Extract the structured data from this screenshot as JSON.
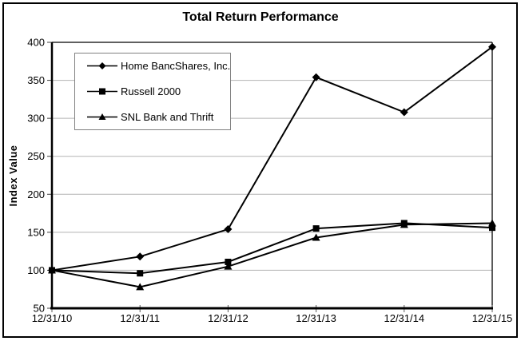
{
  "colors": {
    "series": "#000000",
    "grid": "#b3b3b3",
    "axis": "#000000",
    "legend_border": "#808080",
    "background": "#ffffff"
  },
  "chart_data": {
    "type": "line",
    "title": "Total Return Performance",
    "xlabel": "",
    "ylabel": "Index Value",
    "categories": [
      "12/31/10",
      "12/31/11",
      "12/31/12",
      "12/31/13",
      "12/31/14",
      "12/31/15"
    ],
    "ylim": [
      50,
      400
    ],
    "yticks": [
      50,
      100,
      150,
      200,
      250,
      300,
      350,
      400
    ],
    "grid": "horizontal-gray",
    "legend_position": "upper-left-inside",
    "series": [
      {
        "name": "Home BancShares, Inc.",
        "marker": "diamond",
        "color": "#000000",
        "values": [
          100,
          118,
          154,
          354,
          308,
          394
        ]
      },
      {
        "name": "Russell 2000",
        "marker": "square",
        "color": "#000000",
        "values": [
          100,
          96,
          111,
          155,
          162,
          156
        ]
      },
      {
        "name": "SNL Bank and Thrift",
        "marker": "triangle",
        "color": "#000000",
        "values": [
          100,
          78,
          105,
          143,
          160,
          162
        ]
      }
    ]
  }
}
